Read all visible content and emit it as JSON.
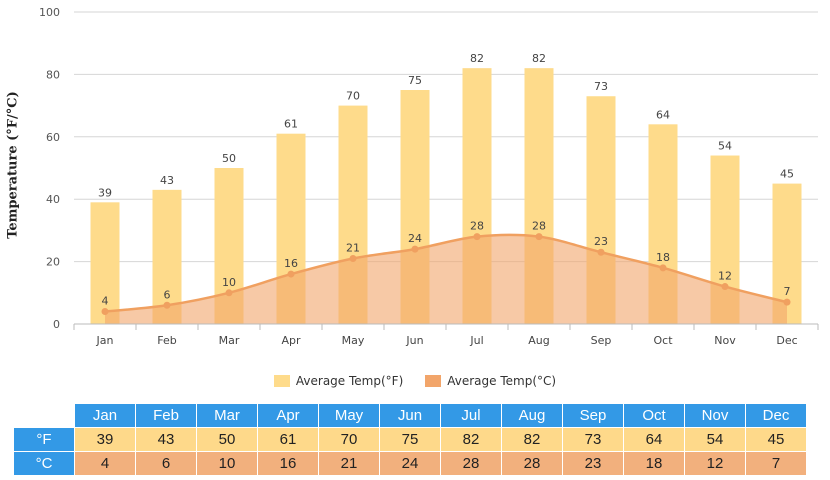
{
  "chart_data": {
    "type": "bar",
    "categories": [
      "Jan",
      "Feb",
      "Mar",
      "Apr",
      "May",
      "Jun",
      "Jul",
      "Aug",
      "Sep",
      "Oct",
      "Nov",
      "Dec"
    ],
    "series": [
      {
        "name": "Average Temp(°F)",
        "kind": "bar",
        "color": "#fedb8b",
        "values": [
          39,
          43,
          50,
          61,
          70,
          75,
          82,
          82,
          73,
          64,
          54,
          45
        ]
      },
      {
        "name": "Average Temp(°C)",
        "kind": "area",
        "color": "#f2a56a",
        "values": [
          4,
          6,
          10,
          16,
          21,
          24,
          28,
          28,
          23,
          18,
          12,
          7
        ]
      }
    ],
    "ylabel": "Temperature (°F/°C)",
    "xlabel": "",
    "ylim": [
      0,
      100
    ],
    "yticks": [
      0,
      20,
      40,
      60,
      80,
      100
    ],
    "grid": true,
    "legend_position": "bottom"
  },
  "table": {
    "row_labels": [
      "°F",
      "°C"
    ],
    "header_color": "#3399e6",
    "f_color": "#fed98a",
    "c_color": "#f2b07d"
  }
}
